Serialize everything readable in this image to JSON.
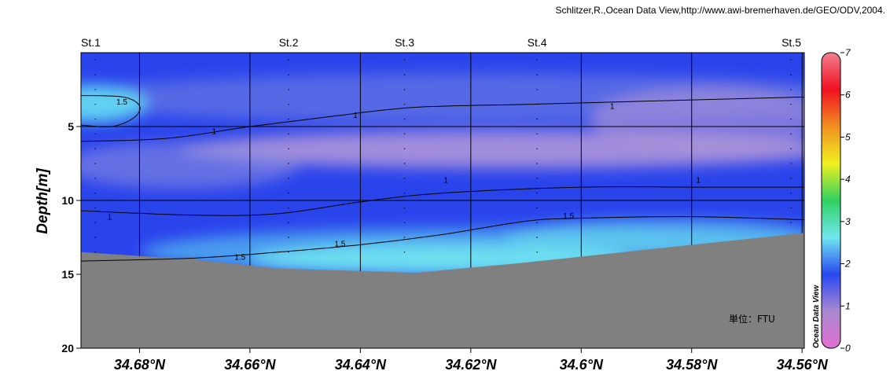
{
  "credit": "Schlitzer,R.,Ocean Data View,http://www.awi-bremerhaven.de/GEO/ODV,2004.",
  "unit_label": "単位：FTU",
  "odv_label": "Ocean Data View",
  "chart_data": {
    "type": "heatmap",
    "title": "",
    "xlabel": "",
    "ylabel": "Depth[m]",
    "x_reversed": true,
    "xlim": [
      34.6906,
      34.5596
    ],
    "ylim": [
      20,
      0
    ],
    "x_ticks": [
      {
        "value": 34.68,
        "label": "34.68°N"
      },
      {
        "value": 34.66,
        "label": "34.66°N"
      },
      {
        "value": 34.64,
        "label": "34.64°N"
      },
      {
        "value": 34.62,
        "label": "34.62°N"
      },
      {
        "value": 34.6,
        "label": "34.6°N"
      },
      {
        "value": 34.58,
        "label": "34.58°N"
      },
      {
        "value": 34.56,
        "label": "34.56°N"
      }
    ],
    "y_ticks": [
      {
        "value": 5,
        "label": "5"
      },
      {
        "value": 10,
        "label": "10"
      },
      {
        "value": 15,
        "label": "15"
      },
      {
        "value": 20,
        "label": "20"
      }
    ],
    "grid": true,
    "stations": [
      {
        "name": "St.1",
        "lat": 34.688
      },
      {
        "name": "St.2",
        "lat": 34.653
      },
      {
        "name": "St.3",
        "lat": 34.632
      },
      {
        "name": "St.4",
        "lat": 34.608
      },
      {
        "name": "St.5",
        "lat": 34.562
      }
    ],
    "colorbar": {
      "min": 0,
      "max": 7,
      "ticks": [
        "0",
        "1",
        "2",
        "3",
        "4",
        "5",
        "6",
        "7"
      ],
      "stops": [
        "#e070d0",
        "#a888d0",
        "#2848f0",
        "#70e8f0",
        "#30d060",
        "#f0f020",
        "#f09020",
        "#f01020",
        "#f08090"
      ]
    },
    "bottom_profile": [
      {
        "lat": 34.6906,
        "depth": 13.5
      },
      {
        "lat": 34.67,
        "depth": 14.0
      },
      {
        "lat": 34.655,
        "depth": 14.6
      },
      {
        "lat": 34.63,
        "depth": 14.9
      },
      {
        "lat": 34.61,
        "depth": 14.2
      },
      {
        "lat": 34.59,
        "depth": 13.4
      },
      {
        "lat": 34.5596,
        "depth": 12.2
      }
    ],
    "contours": [
      {
        "level": "1.5",
        "points": [
          [
            34.6906,
            4.9
          ],
          [
            34.685,
            5.0
          ],
          [
            34.681,
            4.4
          ],
          [
            34.68,
            3.6
          ],
          [
            34.683,
            3.0
          ],
          [
            34.6906,
            2.9
          ]
        ]
      },
      {
        "level": "1",
        "points": [
          [
            34.6906,
            6.0
          ],
          [
            34.675,
            5.8
          ],
          [
            34.66,
            5.0
          ],
          [
            34.645,
            4.3
          ],
          [
            34.63,
            3.7
          ],
          [
            34.61,
            3.5
          ],
          [
            34.59,
            3.3
          ],
          [
            34.5596,
            3.0
          ]
        ]
      },
      {
        "level": "1",
        "points": [
          [
            34.6906,
            10.7
          ],
          [
            34.67,
            11.0
          ],
          [
            34.655,
            10.9
          ],
          [
            34.64,
            10.1
          ],
          [
            34.625,
            9.5
          ],
          [
            34.6,
            9.1
          ],
          [
            34.58,
            9.1
          ],
          [
            34.5596,
            9.1
          ]
        ]
      },
      {
        "level": "1.5",
        "points": [
          [
            34.6906,
            14.1
          ],
          [
            34.67,
            13.9
          ],
          [
            34.655,
            13.5
          ],
          [
            34.64,
            13.0
          ],
          [
            34.625,
            12.3
          ],
          [
            34.61,
            11.4
          ],
          [
            34.6,
            11.2
          ],
          [
            34.58,
            11.1
          ],
          [
            34.5596,
            11.3
          ]
        ]
      }
    ],
    "contour_labels": [
      {
        "text": "1.5",
        "lat": 34.6832,
        "depth": 3.3
      },
      {
        "text": "1",
        "lat": 34.6665,
        "depth": 5.3
      },
      {
        "text": "1",
        "lat": 34.6409,
        "depth": 4.2
      },
      {
        "text": "1",
        "lat": 34.5944,
        "depth": 3.6
      },
      {
        "text": "1",
        "lat": 34.6854,
        "depth": 11.1
      },
      {
        "text": "1",
        "lat": 34.6245,
        "depth": 8.6
      },
      {
        "text": "1",
        "lat": 34.5788,
        "depth": 8.6
      },
      {
        "text": "1.5",
        "lat": 34.6618,
        "depth": 13.8
      },
      {
        "text": "1.5",
        "lat": 34.6437,
        "depth": 12.9
      },
      {
        "text": "1.5",
        "lat": 34.6023,
        "depth": 11.0
      }
    ]
  }
}
